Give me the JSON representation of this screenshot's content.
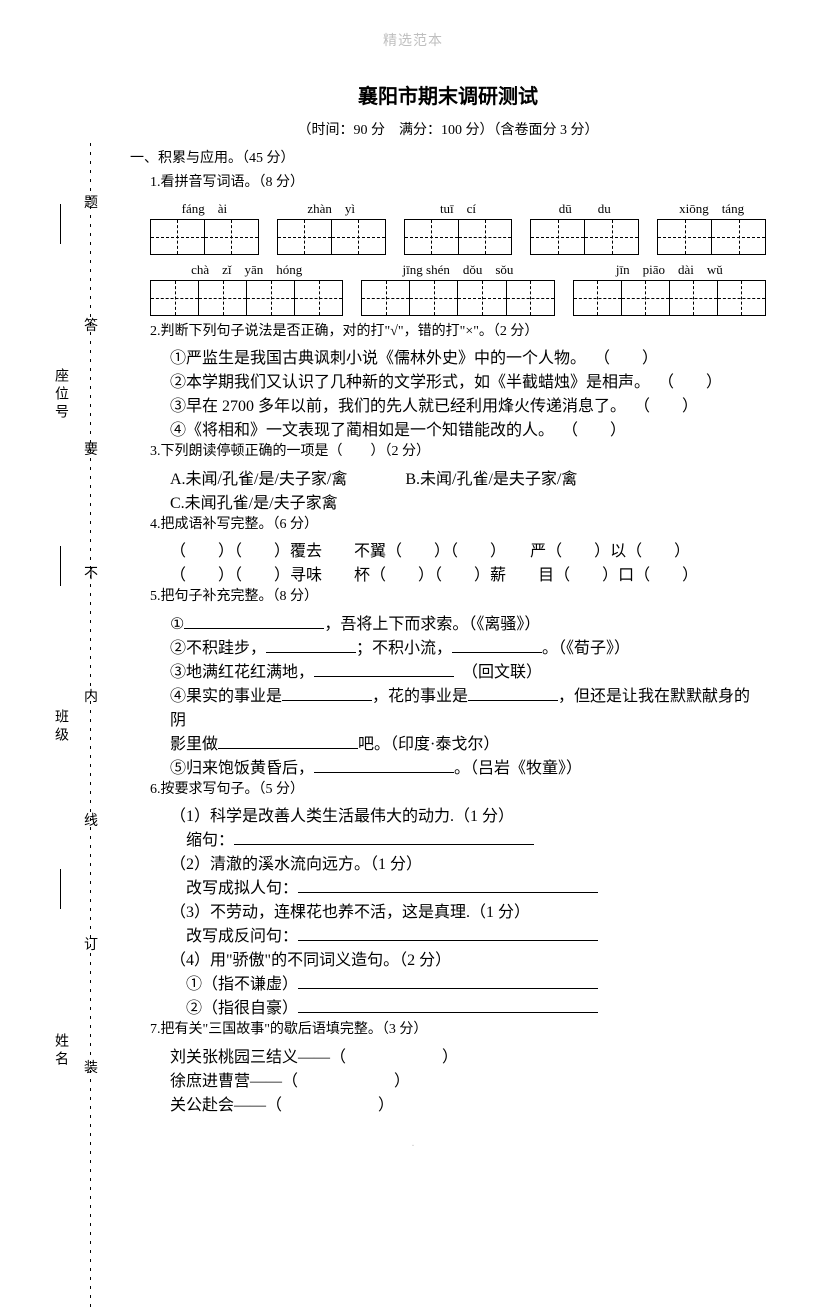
{
  "watermark": "精选范本",
  "footer": ".",
  "title": "襄阳市期末调研测试",
  "subtitle": "（时间：90 分　满分：100 分）（含卷面分 3 分）",
  "sec1": "一、积累与应用。（45 分）",
  "q1": {
    "head": "1.看拼音写词语。（8 分）",
    "row1_pinyin": [
      "fáng　ài",
      "zhàn　yì",
      "tuī　cí",
      "dū　　du",
      "xiōng　táng"
    ],
    "row2_pinyin": [
      "chà　zǐ　yān　hóng",
      "jīng shén　dǒu　sǒu",
      "jīn　piāo　dài　wǔ"
    ],
    "row1_cells": [
      2,
      2,
      2,
      2,
      2
    ],
    "row2_cells": [
      4,
      4,
      4
    ]
  },
  "q2": {
    "head": "2.判断下列句子说法是否正确，对的打\"√\"，错的打\"×\"。（2 分）",
    "items": [
      "①严监生是我国古典讽刺小说《儒林外史》中的一个人物。",
      "②本学期我们又认识了几种新的文学形式，如《半截蜡烛》是相声。",
      "③早在 2700 多年以前，我们的先人就已经利用烽火传递消息了。",
      "④《将相和》一文表现了蔺相如是一个知错能改的人。"
    ]
  },
  "q3": {
    "head": "3.下列朗读停顿正确的一项是（　　）（2 分）",
    "a": "A.未闻/孔雀/是/夫子家/禽",
    "b": "B.未闻/孔雀/是夫子家/禽",
    "c": "C.未闻孔雀/是/夫子家禽"
  },
  "q4": {
    "head": "4.把成语补写完整。（6 分）",
    "line1_parts": [
      "（　　）（　　）覆去",
      "不翼（　　）（　　）",
      "严（　　）以（　　）"
    ],
    "line2_parts": [
      "（　　）（　　）寻味",
      "杯（　　）（　　）薪",
      "目（　　）口（　　）"
    ]
  },
  "q5": {
    "head": "5.把句子补充完整。（8 分）",
    "i1_pre": "①",
    "i1_post": "，吾将上下而求索。（《离骚》）",
    "i2_a": "②不积跬步，",
    "i2_b": "；不积小流，",
    "i2_c": "。（《荀子》）",
    "i3_a": "③地满红花红满地，",
    "i3_b": "（回文联）",
    "i4_a": "④果实的事业是",
    "i4_b": "，花的事业是",
    "i4_c": "，但还是让我在默默献身的阴",
    "i4_d": "影里做",
    "i4_e": "吧。（印度·泰戈尔）",
    "i5_a": "⑤归来饱饭黄昏后，",
    "i5_b": "。（吕岩《牧童》）"
  },
  "q6": {
    "head": "6.按要求写句子。（5 分）",
    "s1": "（1）科学是改善人类生活最伟大的动力.（1 分）",
    "s1p": "缩句：",
    "s2": "（2）清澈的溪水流向远方。（1 分）",
    "s2p": "改写成拟人句：",
    "s3": "（3）不劳动，连棵花也养不活，这是真理.（1 分）",
    "s3p": "改写成反问句：",
    "s4": "（4）用\"骄傲\"的不同词义造句。（2 分）",
    "s4a": "①（指不谦虚）",
    "s4b": "②（指很自豪）"
  },
  "q7": {
    "head": "7.把有关\"三国故事\"的歇后语填完整。（3 分）",
    "i1": "刘关张桃园三结义——（　　　　　　）",
    "i2": "徐庶进曹营——（　　　　　　）",
    "i3": "关公赴会——（　　　　　　）"
  },
  "gutter": {
    "left_labels": [
      "姓名",
      "班级",
      "座位号"
    ],
    "marks": [
      "装",
      "订",
      "线",
      "内",
      "不",
      "要",
      "答",
      "题"
    ]
  }
}
